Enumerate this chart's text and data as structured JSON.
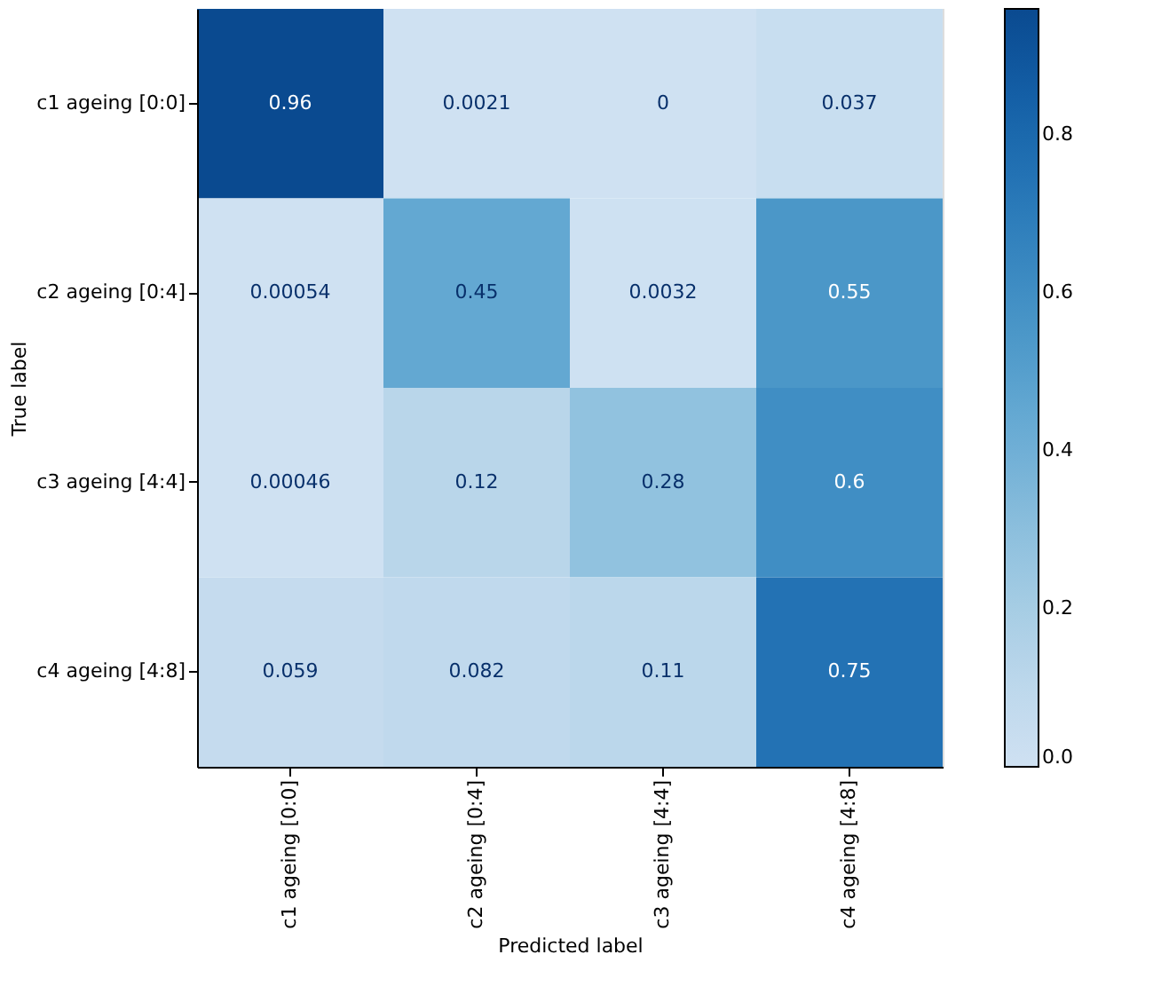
{
  "chart_data": {
    "type": "heatmap",
    "xlabel": "Predicted label",
    "ylabel": "True label",
    "categories": [
      "c1 ageing [0:0]",
      "c2 ageing [0:4]",
      "c3 ageing [4:4]",
      "c4 ageing [4:8]"
    ],
    "y_categories": [
      "c1 ageing [0:0]",
      "c2 ageing [0:4]",
      "c3 ageing [4:4]",
      "c4 ageing [4:8]"
    ],
    "cells": [
      [
        0.96,
        0.0021,
        0,
        0.037
      ],
      [
        0.00054,
        0.45,
        0.0032,
        0.55
      ],
      [
        0.00046,
        0.12,
        0.28,
        0.6
      ],
      [
        0.059,
        0.082,
        0.11,
        0.75
      ]
    ],
    "data_labels": true,
    "clim": [
      0,
      0.96
    ],
    "cticks": [
      {
        "value": 0,
        "label": "0.0"
      },
      {
        "value": 0.2,
        "label": "0.2"
      },
      {
        "value": 0.4,
        "label": "0.4"
      },
      {
        "value": 0.6,
        "label": "0.6"
      },
      {
        "value": 0.8,
        "label": "0.8"
      }
    ]
  }
}
